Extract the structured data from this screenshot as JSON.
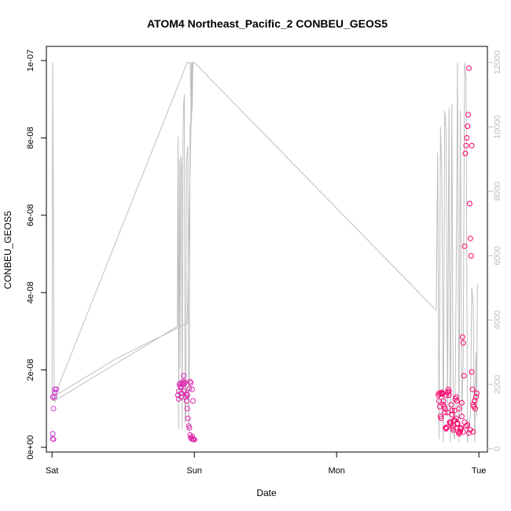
{
  "chart_data": {
    "type": "scatter",
    "title": "ATOM4 Northeast_Pacific_2 CONBEU_GEOS5",
    "xlabel": "Date",
    "ylabel": "CONBEU_GEOS5",
    "x_unit": "days since Sat 00:00",
    "xlim": [
      -0.04,
      3.06
    ],
    "ylim": [
      0,
      1e-07
    ],
    "x_ticks": [
      {
        "label": "Sat",
        "value": 0
      },
      {
        "label": "Sun",
        "value": 1
      },
      {
        "label": "Mon",
        "value": 2
      },
      {
        "label": "Tue",
        "value": 3
      }
    ],
    "y_ticks": [
      {
        "label": "0e+00",
        "value": 0
      },
      {
        "label": "2e-08",
        "value": 2e-08
      },
      {
        "label": "4e-08",
        "value": 4e-08
      },
      {
        "label": "6e-08",
        "value": 6e-08
      },
      {
        "label": "8e-08",
        "value": 8e-08
      },
      {
        "label": "1e-07",
        "value": 1e-07
      }
    ],
    "y2_ticks": [
      {
        "label": "0",
        "value": 0
      },
      {
        "label": "2000",
        "value": 2000
      },
      {
        "label": "4000",
        "value": 4000
      },
      {
        "label": "6000",
        "value": 6000
      },
      {
        "label": "8000",
        "value": 8000
      },
      {
        "label": "10000",
        "value": 10000
      },
      {
        "label": "12000",
        "value": 12000
      }
    ],
    "y2lim": [
      -100,
      12500
    ],
    "grid": false,
    "series": [
      {
        "kind": "points",
        "color_start": "#cc33cc",
        "color_end": "#ff0066",
        "x": [
          0.005,
          0.01,
          0.005,
          0.01,
          0.005,
          0.02,
          0.02,
          0.015,
          0.03,
          0.885,
          0.89,
          0.895,
          0.9,
          0.905,
          0.91,
          0.915,
          0.92,
          0.925,
          0.93,
          0.935,
          0.94,
          0.945,
          0.95,
          0.955,
          0.96,
          0.965,
          0.97,
          0.975,
          0.98,
          0.985,
          0.99,
          0.995,
          1.0,
          0.89,
          0.91,
          0.93,
          0.95,
          0.97,
          0.985,
          0.99,
          0.905,
          0.925,
          0.945,
          0.965,
          0.975,
          2.715,
          2.72,
          2.725,
          2.73,
          2.735,
          2.74,
          2.745,
          2.75,
          2.755,
          2.76,
          2.765,
          2.77,
          2.775,
          2.78,
          2.785,
          2.79,
          2.795,
          2.8,
          2.805,
          2.81,
          2.815,
          2.82,
          2.825,
          2.83,
          2.835,
          2.84,
          2.845,
          2.85,
          2.855,
          2.86,
          2.865,
          2.87,
          2.875,
          2.88,
          2.885,
          2.89,
          2.895,
          2.9,
          2.905,
          2.91,
          2.915,
          2.92,
          2.925,
          2.93,
          2.935,
          2.94,
          2.945,
          2.95,
          2.955,
          2.96,
          2.965,
          2.97,
          2.975,
          2.98,
          2.985,
          2.72,
          2.74,
          2.76,
          2.78,
          2.8,
          2.82,
          2.84,
          2.86,
          2.88,
          2.9,
          2.92,
          2.94,
          2.96,
          2.73,
          2.75,
          2.77,
          2.79,
          2.81,
          2.83,
          2.85,
          2.87,
          2.89,
          2.91,
          2.93,
          2.95,
          2.97
        ],
        "y": [
          2.2e-09,
          2.1e-09,
          3.5e-09,
          1e-08,
          1.3e-08,
          1.5e-08,
          1.42e-08,
          1.3e-08,
          1.5e-08,
          1.35e-08,
          1.45e-08,
          1.62e-08,
          1.65e-08,
          1.55e-08,
          1.4e-08,
          1.65e-08,
          1.7e-08,
          1.85e-08,
          1.65e-08,
          1.68e-08,
          1.3e-08,
          1.2e-08,
          1e-08,
          7.5e-09,
          5.5e-09,
          5e-09,
          3.2e-09,
          2.5e-09,
          2.2e-09,
          2.8e-09,
          2.2e-09,
          2.1e-09,
          2e-09,
          1.25e-08,
          1.3e-08,
          1.45e-08,
          1.35e-08,
          1.7e-08,
          1.5e-08,
          1.2e-08,
          1.58e-08,
          1.62e-08,
          1.38e-08,
          1.52e-08,
          1.66e-08,
          1.35e-08,
          1.2e-08,
          1.05e-08,
          8e-09,
          7.5e-09,
          1.4e-08,
          1.38e-08,
          1.2e-08,
          1.05e-08,
          9e-09,
          5e-09,
          4.8e-09,
          5.2e-09,
          1.42e-08,
          1.5e-08,
          1.35e-08,
          6.5e-09,
          6e-09,
          1.1e-08,
          8.5e-09,
          5e-09,
          4.5e-09,
          7e-09,
          9.5e-09,
          1.25e-08,
          1.3e-08,
          1.2e-08,
          6e-09,
          4e-09,
          3.5e-09,
          3.8e-09,
          4.2e-09,
          5e-09,
          8e-09,
          2.85e-08,
          2.7e-08,
          1.85e-08,
          5.2e-08,
          7.6e-08,
          7.8e-08,
          8e-08,
          8.3e-08,
          8.6e-08,
          9.8e-08,
          6.3e-08,
          5.4e-08,
          4.95e-08,
          1.95e-08,
          1.5e-08,
          1.1e-08,
          1.05e-08,
          1.2e-08,
          1e-08,
          1.3e-08,
          1.4e-08,
          1.4e-08,
          1.42e-08,
          1e-08,
          9e-09,
          6.5e-09,
          5.5e-09,
          7.5e-09,
          1e-08,
          1.15e-08,
          6.5e-09,
          5.8e-09,
          4.5e-09,
          4e-09,
          1.38e-08,
          1.1e-08,
          1.35e-08,
          1.45e-08,
          9.5e-09,
          7e-09,
          6.2e-09,
          4.8e-09,
          4e-09,
          5.5e-09,
          3.7e-09,
          7.8e-08,
          1.2e-08
        ]
      },
      {
        "kind": "line",
        "axis": "right",
        "color": "#bebebe",
        "x": [
          0.0,
          0.005,
          0.015,
          0.02,
          0.03,
          0.04,
          0.45,
          0.95,
          0.985,
          0.99,
          0.98,
          0.97,
          0.96,
          0.95,
          0.005,
          0.02,
          0.88,
          0.885,
          0.89,
          0.895,
          0.9,
          0.905,
          0.91,
          0.915,
          0.92,
          0.925,
          0.93,
          0.935,
          0.94,
          0.945,
          0.95,
          0.955,
          0.96,
          0.965,
          0.97,
          0.975,
          0.98,
          0.985,
          0.99,
          0.995,
          1.0,
          1.0,
          2.7,
          2.71,
          2.72,
          2.73,
          2.74,
          2.75,
          2.76,
          2.77,
          2.78,
          2.79,
          2.8,
          2.81,
          2.82,
          2.83,
          2.84,
          2.85,
          2.86,
          2.87,
          2.88,
          2.89,
          2.9,
          2.91,
          2.92,
          2.93,
          2.94,
          2.95,
          2.96,
          2.97,
          2.98,
          2.985,
          2.99
        ],
        "y": [
          1500,
          12000,
          1500,
          1450,
          1600,
          1700,
          2800,
          3900,
          12000,
          12000,
          10200,
          12000,
          12000,
          12000,
          1500,
          1500,
          3800,
          9700,
          600,
          9000,
          2500,
          9100,
          8800,
          600,
          9600,
          10700,
          11000,
          800,
          1000,
          9000,
          9200,
          9400,
          600,
          2100,
          10000,
          10200,
          12000,
          10500,
          12000,
          12000,
          12000,
          12000,
          4300,
          9200,
          300,
          10000,
          8500,
          200,
          10500,
          9900,
          1000,
          10600,
          200,
          10700,
          500,
          300,
          5000,
          12000,
          200,
          10500,
          1000,
          2700,
          12000,
          11500,
          200,
          800,
          1000,
          5000,
          4500,
          200,
          3000,
          1000,
          5100
        ]
      }
    ]
  }
}
